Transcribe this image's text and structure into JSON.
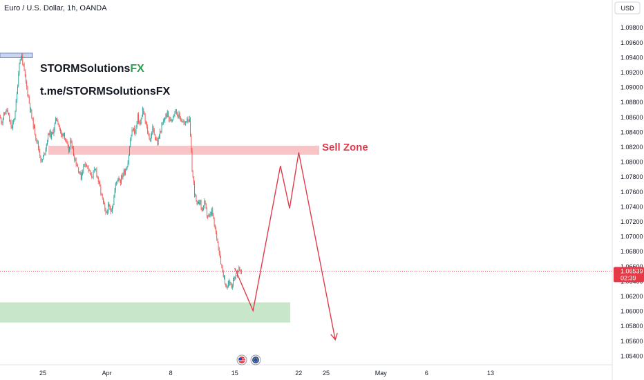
{
  "chart_data": {
    "type": "candlestick",
    "title": "Euro / U.S. Dollar, 1h, OANDA",
    "currency": "USD",
    "y_ticks": [
      "1.09800",
      "1.09600",
      "1.09400",
      "1.09200",
      "1.09000",
      "1.08800",
      "1.08600",
      "1.08400",
      "1.08200",
      "1.08000",
      "1.07800",
      "1.07600",
      "1.07400",
      "1.07200",
      "1.07000",
      "1.06800",
      "1.06600",
      "1.06400",
      "1.06200",
      "1.06000",
      "1.05800",
      "1.05600",
      "1.05400"
    ],
    "ylim": [
      1.0533,
      1.0995
    ],
    "x_ticks": [
      "25",
      "Apr",
      "8",
      "15",
      "22",
      "25",
      "May",
      "6",
      "13"
    ],
    "current_price": "1.06539",
    "countdown": "02:39",
    "price_path": [
      1.086,
      1.0855,
      1.0865,
      1.087,
      1.0855,
      1.0845,
      1.086,
      1.089,
      1.0935,
      1.0942,
      1.092,
      1.09,
      1.088,
      1.086,
      1.0845,
      1.083,
      1.0815,
      1.08,
      1.081,
      1.0825,
      1.084,
      1.0835,
      1.0845,
      1.086,
      1.085,
      1.0835,
      1.084,
      1.0825,
      1.0815,
      1.083,
      1.081,
      1.08,
      1.079,
      1.078,
      1.0795,
      1.08,
      1.079,
      1.078,
      1.0785,
      1.079,
      1.0775,
      1.076,
      1.0745,
      1.073,
      1.074,
      1.0735,
      1.0745,
      1.077,
      1.078,
      1.0775,
      1.0785,
      1.079,
      1.08,
      1.083,
      1.0845,
      1.084,
      1.086,
      1.085,
      1.087,
      1.0855,
      1.084,
      1.083,
      1.0845,
      1.0835,
      1.0825,
      1.084,
      1.085,
      1.086,
      1.0865,
      1.0855,
      1.086,
      1.087,
      1.0865,
      1.086,
      1.0855,
      1.085,
      1.086,
      1.0855,
      1.079,
      1.076,
      1.074,
      1.075,
      1.0735,
      1.0745,
      1.073,
      1.0725,
      1.0735,
      1.0715,
      1.07,
      1.068,
      1.066,
      1.0645,
      1.063,
      1.064,
      1.0635,
      1.0645,
      1.065,
      1.0655,
      1.0654
    ],
    "zones": {
      "sell": {
        "label": "Sell Zone",
        "y_top": 1.0822,
        "y_bottom": 1.081
      },
      "buy": {
        "y_top": 1.0612,
        "y_bottom": 1.0585
      },
      "top_marker": {
        "y_top": 1.0946,
        "y_bottom": 1.094
      }
    },
    "projection": [
      {
        "x": "2024-04-15",
        "y": 1.0658
      },
      {
        "x": "2024-04-17",
        "y": 1.0601
      },
      {
        "x": "2024-04-20",
        "y": 1.0795
      },
      {
        "x": "2024-04-21",
        "y": 1.0738
      },
      {
        "x": "2024-04-22",
        "y": 1.0813
      },
      {
        "x": "2024-04-26",
        "y": 1.0562
      }
    ]
  },
  "branding": {
    "name_main": "STORMSolutions",
    "name_accent": "FX",
    "link": "t.me/STORMSolutionsFX"
  },
  "colors": {
    "up": "#26a69a",
    "down": "#ef5350",
    "sell_zone": "#f9c4c6",
    "buy_zone": "#c8e6c9",
    "projection": "#e03a4a",
    "accent_green": "#2e9e4f",
    "accent_red": "#e03a4a",
    "price_tag": "#e53945"
  }
}
